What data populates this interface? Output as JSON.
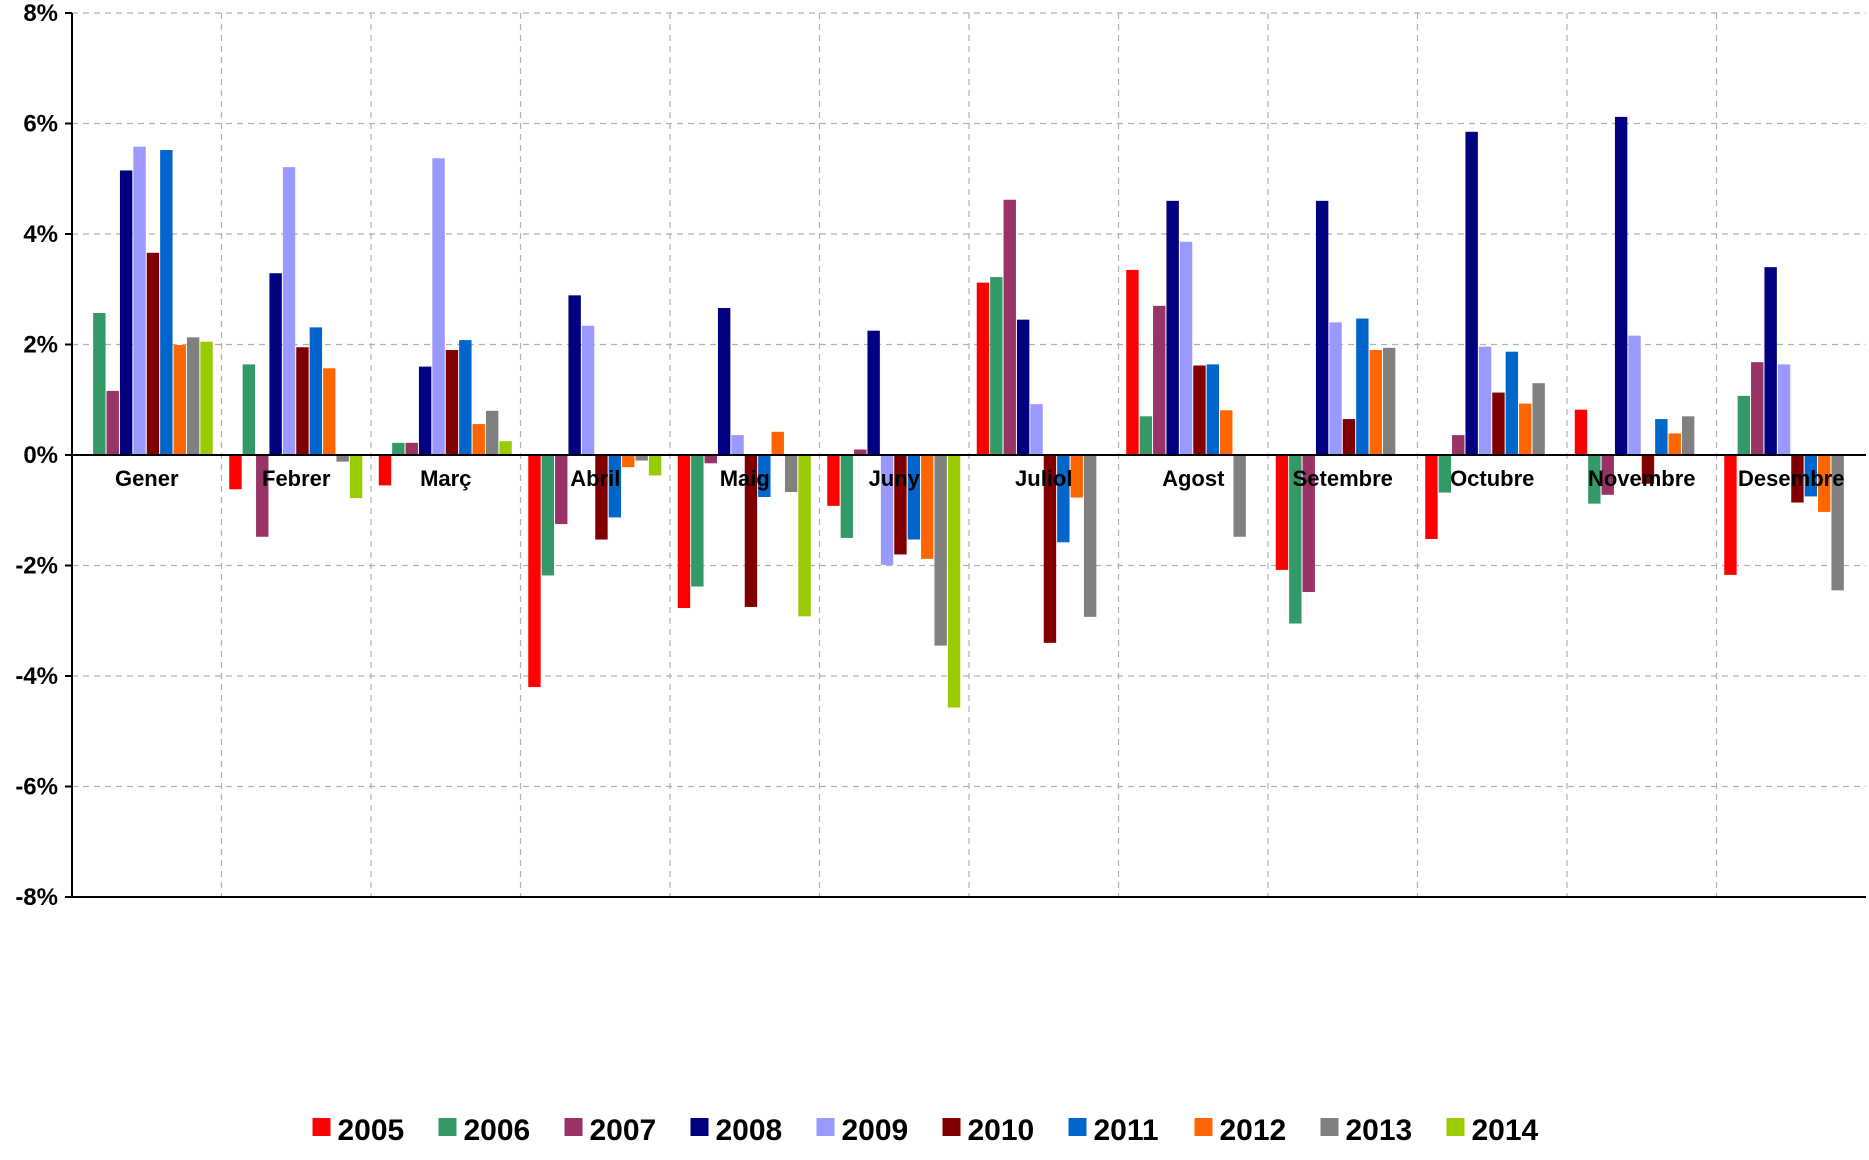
{
  "chart_data": {
    "type": "bar",
    "title": "",
    "xlabel": "",
    "ylabel": "",
    "ylim": [
      -8,
      8
    ],
    "yticks": [
      -8,
      -6,
      -4,
      -2,
      0,
      2,
      4,
      6,
      8
    ],
    "ytick_format": "{v}%",
    "grid": true,
    "legend_position": "bottom",
    "categories": [
      "Gener",
      "Febrer",
      "Març",
      "Abril",
      "Maig",
      "Juny",
      "Juliol",
      "Agost",
      "Setembre",
      "Octubre",
      "Novembre",
      "Desembre"
    ],
    "series": [
      {
        "name": "2005",
        "color": "#ff0000",
        "values": [
          0,
          -0.62,
          -0.55,
          -4.2,
          -2.77,
          -0.92,
          3.12,
          3.35,
          -2.08,
          -1.52,
          0.82,
          -2.17
        ]
      },
      {
        "name": "2006",
        "color": "#339966",
        "values": [
          2.57,
          1.64,
          0.22,
          -2.18,
          -2.38,
          -1.5,
          3.22,
          0.7,
          -3.05,
          -0.68,
          -0.88,
          1.07
        ]
      },
      {
        "name": "2007",
        "color": "#993366",
        "values": [
          1.16,
          -1.48,
          0.22,
          -1.25,
          -0.15,
          0.1,
          4.62,
          2.7,
          -2.48,
          0.36,
          -0.72,
          1.68
        ]
      },
      {
        "name": "2008",
        "color": "#000080",
        "values": [
          5.15,
          3.29,
          1.6,
          2.89,
          2.66,
          2.25,
          2.45,
          4.6,
          4.6,
          5.85,
          6.12,
          3.4
        ]
      },
      {
        "name": "2009",
        "color": "#9999ff",
        "values": [
          5.58,
          5.21,
          5.37,
          2.34,
          0.36,
          -1.99,
          0.92,
          3.86,
          2.4,
          1.96,
          2.16,
          1.64
        ]
      },
      {
        "name": "2010",
        "color": "#800000",
        "values": [
          3.66,
          1.95,
          1.9,
          -1.53,
          -2.75,
          -1.8,
          -3.4,
          1.62,
          0.65,
          1.13,
          -0.52,
          -0.86
        ]
      },
      {
        "name": "2011",
        "color": "#0066cc",
        "values": [
          5.52,
          2.31,
          2.08,
          -1.13,
          -0.76,
          -1.53,
          -1.58,
          1.64,
          2.47,
          1.87,
          0.65,
          -0.75
        ]
      },
      {
        "name": "2012",
        "color": "#ff6600",
        "values": [
          1.99,
          1.57,
          0.56,
          -0.22,
          0.42,
          -1.88,
          -0.77,
          0.81,
          1.9,
          0.93,
          0.39,
          -1.03
        ]
      },
      {
        "name": "2013",
        "color": "#808080",
        "values": [
          2.13,
          -0.12,
          0.8,
          -0.1,
          -0.67,
          -3.45,
          -2.93,
          -1.48,
          1.94,
          1.3,
          0.7,
          -2.45
        ]
      },
      {
        "name": "2014",
        "color": "#99cc00",
        "values": [
          2.05,
          -0.78,
          0.25,
          -0.37,
          -2.92,
          -4.57,
          0,
          0,
          0,
          0,
          0,
          0
        ]
      }
    ]
  }
}
